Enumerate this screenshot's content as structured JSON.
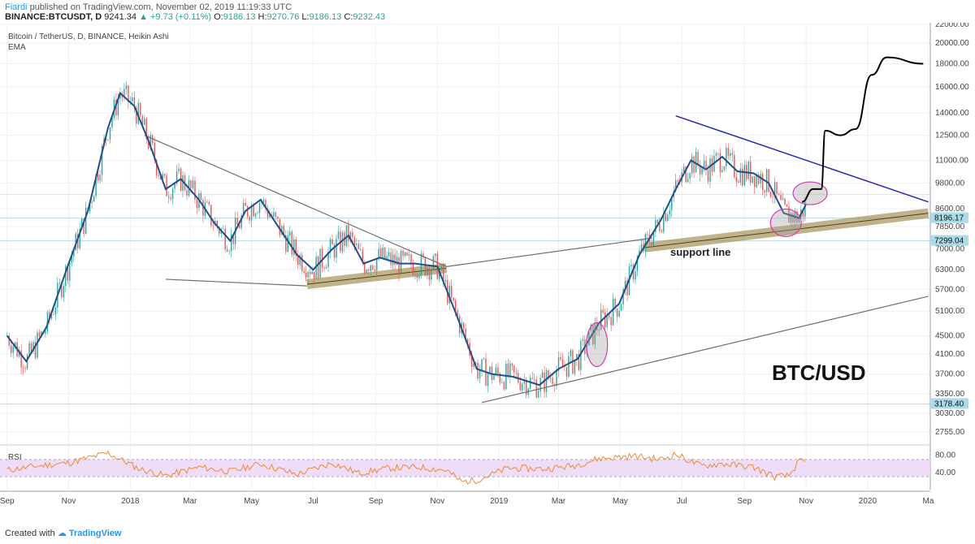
{
  "header": {
    "author": "Fiardi",
    "published": " published on TradingView.com, November 02, 2019 11:19:33 UTC",
    "symbol": "BINANCE:BTCUSDT, D",
    "last": "9241.34",
    "change": "▲ +9.73 (+0.11%)",
    "ohlc_o_label": "O:",
    "ohlc_o": "9186.13",
    "ohlc_h_label": "H:",
    "ohlc_h": "9270.76",
    "ohlc_l_label": "L:",
    "ohlc_l": "9186.13",
    "ohlc_c_label": "C:",
    "ohlc_c": "9232.43"
  },
  "legend": {
    "instrument": "Bitcoin / TetherUS, D, BINANCE, Heikin Ashi",
    "indicator": "EMA",
    "rsi": "RSI"
  },
  "annotations": {
    "support_line": "support line",
    "pair_label": "BTC/USD"
  },
  "footer": {
    "created_with": "Created with",
    "brand": "TradingView"
  },
  "colors": {
    "up": "#26a69a",
    "down": "#ef5350",
    "ema": "#1e4f8c",
    "trend_blue": "#2626b8",
    "support_band": "#a08a4a",
    "rsi": "#f08a30",
    "rsi_band": "#ead5f5",
    "badge": "#a9dbe8",
    "projection": "#000000",
    "circle": "#d63ab0"
  },
  "chart_data": {
    "type": "line",
    "title": "Bitcoin / TetherUS, D, BINANCE, Heikin Ashi",
    "y_scale": "log",
    "ylim": [
      2600,
      22000
    ],
    "y_ticks": [
      "22000.00",
      "20000.00",
      "18000.00",
      "16000.00",
      "14000.00",
      "12500.00",
      "11000.00",
      "9800.00",
      "8600.00",
      "7850.00",
      "7000.00",
      "6300.00",
      "5700.00",
      "5100.00",
      "4500.00",
      "4100.00",
      "3700.00",
      "3350.00",
      "3030.00",
      "2755.00"
    ],
    "price_badges": [
      {
        "label": "8196.17",
        "value": 8196.17
      },
      {
        "label": "7299.04",
        "value": 7299.04
      },
      {
        "label": "3178.40",
        "value": 3178.4
      }
    ],
    "x_ticks": [
      "Sep",
      "Nov",
      "2018",
      "Mar",
      "May",
      "Jul",
      "Sep",
      "Nov",
      "2019",
      "Mar",
      "May",
      "Jul",
      "Sep",
      "Nov",
      "2020",
      "Ma"
    ],
    "x_tick_dates": [
      "2017-09",
      "2017-11",
      "2018-01",
      "2018-03",
      "2018-05",
      "2018-07",
      "2018-09",
      "2018-11",
      "2019-01",
      "2019-03",
      "2019-05",
      "2019-07",
      "2019-09",
      "2019-11",
      "2020-01",
      "2020-03"
    ],
    "series": [
      {
        "name": "EMA",
        "points": [
          [
            "2017-09-01",
            4500
          ],
          [
            "2017-09-20",
            3950
          ],
          [
            "2017-10-10",
            4700
          ],
          [
            "2017-11-01",
            6500
          ],
          [
            "2017-11-20",
            8500
          ],
          [
            "2017-12-10",
            13000
          ],
          [
            "2017-12-22",
            15500
          ],
          [
            "2018-01-05",
            14500
          ],
          [
            "2018-01-20",
            12000
          ],
          [
            "2018-02-05",
            9500
          ],
          [
            "2018-02-20",
            10000
          ],
          [
            "2018-03-10",
            9000
          ],
          [
            "2018-03-25",
            8000
          ],
          [
            "2018-04-10",
            7300
          ],
          [
            "2018-04-25",
            8500
          ],
          [
            "2018-05-10",
            9000
          ],
          [
            "2018-05-25",
            8000
          ],
          [
            "2018-06-15",
            6800
          ],
          [
            "2018-07-01",
            6300
          ],
          [
            "2018-07-20",
            7000
          ],
          [
            "2018-08-05",
            7500
          ],
          [
            "2018-08-20",
            6500
          ],
          [
            "2018-09-05",
            6700
          ],
          [
            "2018-09-25",
            6500
          ],
          [
            "2018-10-10",
            6500
          ],
          [
            "2018-11-01",
            6400
          ],
          [
            "2018-11-20",
            5000
          ],
          [
            "2018-12-10",
            3800
          ],
          [
            "2018-12-25",
            3700
          ],
          [
            "2019-01-15",
            3650
          ],
          [
            "2019-02-10",
            3500
          ],
          [
            "2019-03-01",
            3800
          ],
          [
            "2019-03-20",
            4000
          ],
          [
            "2019-04-10",
            4800
          ],
          [
            "2019-04-30",
            5300
          ],
          [
            "2019-05-20",
            6800
          ],
          [
            "2019-06-10",
            8100
          ],
          [
            "2019-06-25",
            9500
          ],
          [
            "2019-07-10",
            11000
          ],
          [
            "2019-07-25",
            10500
          ],
          [
            "2019-08-10",
            11200
          ],
          [
            "2019-08-25",
            10400
          ],
          [
            "2019-09-10",
            10300
          ],
          [
            "2019-09-25",
            9800
          ],
          [
            "2019-10-10",
            8400
          ],
          [
            "2019-10-25",
            8200
          ],
          [
            "2019-11-01",
            8800
          ]
        ]
      },
      {
        "name": "RSI",
        "ylim": [
          0,
          100
        ],
        "y_ticks": [
          "80.00",
          "40.00"
        ],
        "band": [
          30,
          70
        ],
        "points": [
          [
            "2017-09-01",
            45
          ],
          [
            "2017-10-01",
            55
          ],
          [
            "2017-11-01",
            62
          ],
          [
            "2017-12-10",
            85
          ],
          [
            "2018-01-10",
            48
          ],
          [
            "2018-02-05",
            32
          ],
          [
            "2018-03-10",
            52
          ],
          [
            "2018-04-10",
            42
          ],
          [
            "2018-05-10",
            60
          ],
          [
            "2018-06-15",
            35
          ],
          [
            "2018-07-20",
            62
          ],
          [
            "2018-08-15",
            38
          ],
          [
            "2018-09-15",
            50
          ],
          [
            "2018-10-15",
            52
          ],
          [
            "2018-11-10",
            45
          ],
          [
            "2018-11-25",
            18
          ],
          [
            "2018-12-10",
            22
          ],
          [
            "2019-01-10",
            50
          ],
          [
            "2019-02-15",
            48
          ],
          [
            "2019-03-15",
            55
          ],
          [
            "2019-04-10",
            72
          ],
          [
            "2019-05-15",
            78
          ],
          [
            "2019-06-10",
            70
          ],
          [
            "2019-06-25",
            82
          ],
          [
            "2019-07-20",
            55
          ],
          [
            "2019-08-10",
            60
          ],
          [
            "2019-09-10",
            52
          ],
          [
            "2019-10-01",
            30
          ],
          [
            "2019-10-15",
            32
          ],
          [
            "2019-10-25",
            65
          ],
          [
            "2019-11-01",
            63
          ]
        ]
      },
      {
        "name": "projection",
        "points": [
          [
            "2019-10-28",
            8900
          ],
          [
            "2019-11-08",
            9500
          ],
          [
            "2019-11-16",
            9500
          ],
          [
            "2019-11-20",
            12800
          ],
          [
            "2019-12-05",
            12500
          ],
          [
            "2019-12-20",
            12900
          ],
          [
            "2020-01-05",
            17000
          ],
          [
            "2020-01-20",
            18600
          ],
          [
            "2020-02-25",
            18000
          ]
        ]
      }
    ],
    "trendlines": [
      {
        "name": "descending-resistance-2018",
        "from": [
          "2018-01-15",
          12500
        ],
        "to": [
          "2018-11-10",
          6400
        ]
      },
      {
        "name": "lower-wedge-2018",
        "from": [
          "2018-02-05",
          6000
        ],
        "to": [
          "2018-06-25",
          5800
        ]
      },
      {
        "name": "connector-2018-2019",
        "from": [
          "2018-11-10",
          6400
        ],
        "to": [
          "2019-06-01",
          7400
        ]
      },
      {
        "name": "descending-resistance-2019",
        "from": [
          "2019-06-25",
          13800
        ],
        "to": [
          "2020-03-01",
          8900
        ]
      },
      {
        "name": "ascending-support-2019",
        "from": [
          "2018-12-15",
          3200
        ],
        "to": [
          "2020-03-01",
          5500
        ]
      }
    ],
    "support_bands": [
      {
        "from": [
          "2018-06-25",
          5850
        ],
        "to": [
          "2018-11-10",
          6350
        ]
      },
      {
        "from": [
          "2019-05-25",
          7050
        ],
        "to": [
          "2020-03-01",
          8400
        ]
      }
    ],
    "highlight_ellipses": [
      {
        "center": [
          "2019-04-08",
          4300
        ],
        "label": ""
      },
      {
        "center": [
          "2019-10-12",
          8000
        ],
        "label": ""
      },
      {
        "center": [
          "2019-11-05",
          9300
        ],
        "label": ""
      }
    ],
    "xlabel": "",
    "ylabel": "",
    "grid": true
  }
}
